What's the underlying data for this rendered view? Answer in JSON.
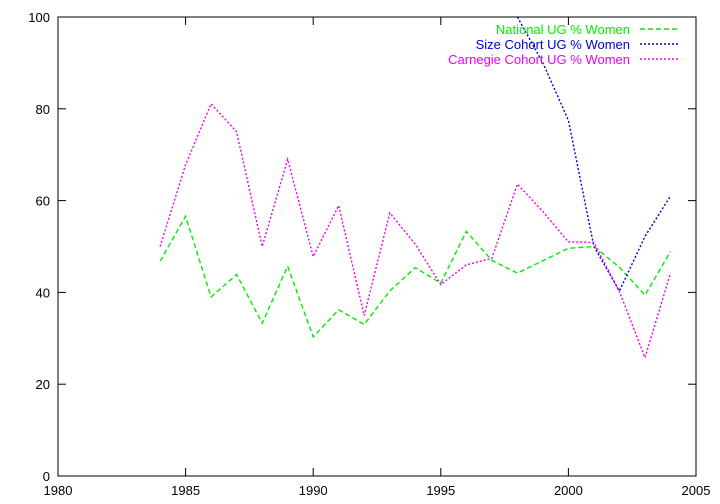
{
  "chart_data": {
    "type": "line",
    "title": "",
    "xlabel": "",
    "ylabel": "",
    "xlim": [
      1980,
      2005
    ],
    "ylim": [
      0,
      100
    ],
    "xticks": [
      "1980",
      "1985",
      "1990",
      "1995",
      "2000",
      "2005"
    ],
    "yticks": [
      "0",
      "20",
      "40",
      "60",
      "80",
      "100"
    ],
    "grid": false,
    "legend_position": "top-right",
    "series": [
      {
        "name": "National UG % Women",
        "color": "#00ee00",
        "dash": "dashed",
        "x": [
          1984,
          1985,
          1986,
          1987,
          1988,
          1989,
          1990,
          1991,
          1992,
          1993,
          1994,
          1995,
          1996,
          1997,
          1998,
          1999,
          2000,
          2001,
          2002,
          2003,
          2004
        ],
        "y": [
          46.8,
          56.6,
          39.0,
          43.9,
          33.3,
          45.7,
          30.3,
          36.2,
          33.0,
          40.3,
          45.4,
          42.0,
          53.3,
          47.0,
          44.2,
          46.9,
          49.6,
          50.0,
          45.5,
          39.4,
          48.9
        ]
      },
      {
        "name": "Size Cohort UG % Women",
        "color": "#0000cc",
        "dash": "dotted",
        "x": [
          1998,
          1999,
          2000,
          2001,
          2002,
          2003,
          2004
        ],
        "y": [
          100.0,
          90.0,
          77.5,
          50.0,
          40.3,
          52.2,
          61.0
        ]
      },
      {
        "name": "Carnegie Cohort UG % Women",
        "color": "#ee00ee",
        "dash": "dotted",
        "x": [
          1984,
          1985,
          1986,
          1987,
          1988,
          1989,
          1990,
          1991,
          1992,
          1993,
          1994,
          1995,
          1996,
          1997,
          1998,
          1999,
          2000,
          2001,
          2002,
          2003,
          2004
        ],
        "y": [
          50.0,
          67.8,
          81.1,
          75.0,
          50.0,
          69.0,
          47.8,
          58.9,
          35.0,
          57.3,
          50.5,
          41.7,
          46.0,
          47.4,
          63.6,
          57.6,
          51.0,
          50.9,
          40.2,
          25.8,
          44.2
        ]
      }
    ]
  }
}
